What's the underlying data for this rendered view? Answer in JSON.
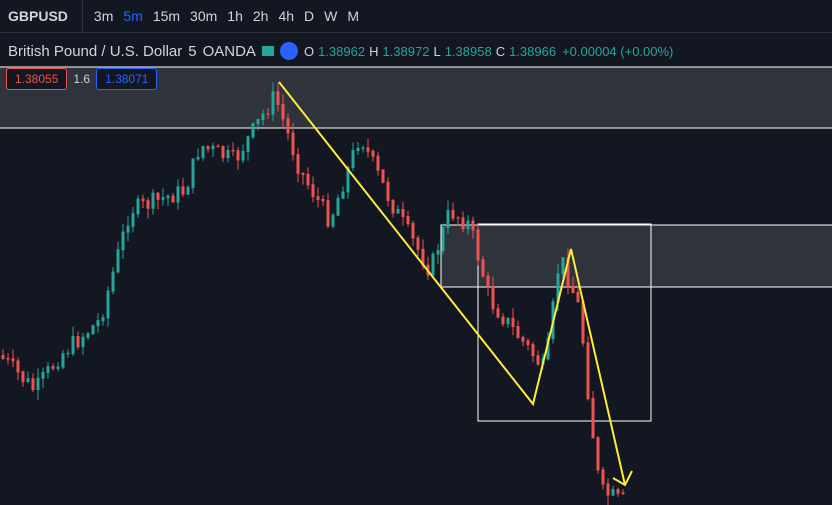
{
  "toolbar": {
    "symbol": "GBPUSD",
    "intervals": [
      "3m",
      "5m",
      "15m",
      "30m",
      "1h",
      "2h",
      "4h",
      "D",
      "W",
      "M"
    ],
    "active_interval": "5m"
  },
  "legend": {
    "name": "British Pound / U.S. Dollar",
    "interval": "5",
    "source": "OANDA",
    "ohlc": [
      {
        "label": "O",
        "value": "1.38962"
      },
      {
        "label": "H",
        "value": "1.38972"
      },
      {
        "label": "L",
        "value": "1.38958"
      },
      {
        "label": "C",
        "value": "1.38966"
      }
    ],
    "change": "+0.00004 (+0.00%)"
  },
  "trade": {
    "sell": "1.38055",
    "spread": "1.6",
    "buy": "1.38071"
  }
}
